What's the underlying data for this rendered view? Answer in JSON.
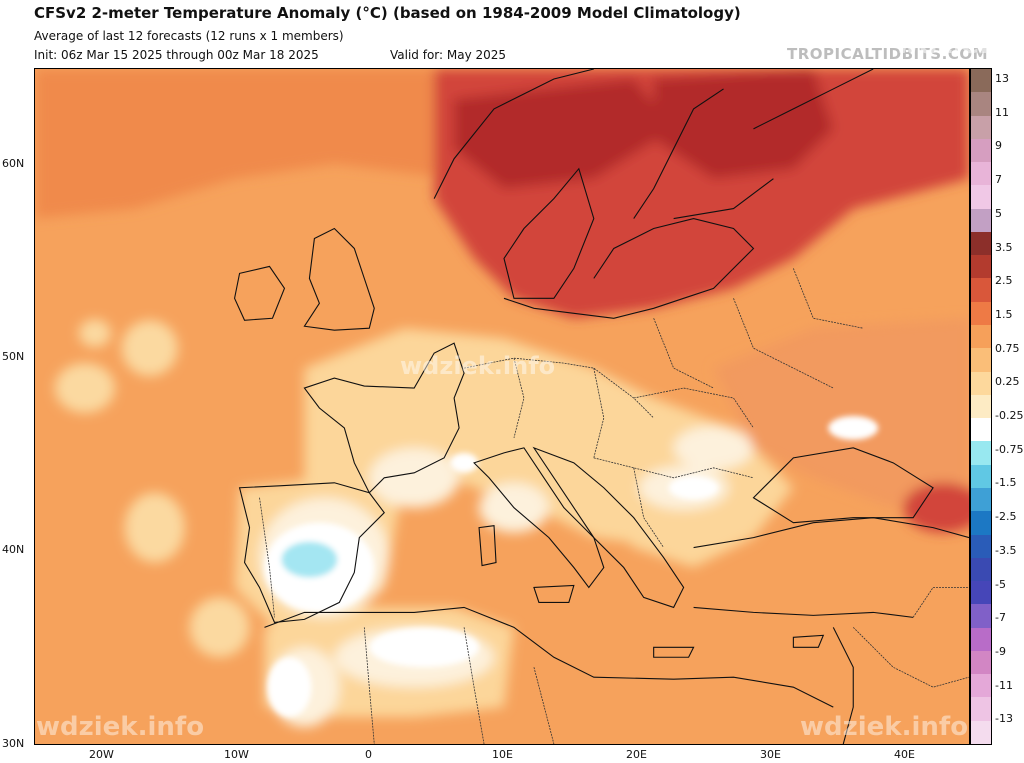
{
  "header": {
    "title": "CFSv2 2-meter Temperature Anomaly (°C) (based on 1984-2009 Model Climatology)",
    "subtitle": "Average of last 12 forecasts (12 runs x 1 members)",
    "init": "Init: 06z Mar 15 2025 through 00z Mar 18 2025",
    "valid": "Valid for: May 2025",
    "brand": "TROPICALTIDBITS.COM"
  },
  "watermarks": {
    "text": "wdziek.info"
  },
  "axes": {
    "lat_labels": [
      "60N",
      "50N",
      "40N",
      "30N"
    ],
    "lon_labels": [
      "20W",
      "10W",
      "0",
      "10E",
      "20E",
      "30E",
      "40E"
    ]
  },
  "legend": {
    "labels": [
      "13",
      "11",
      "9",
      "7",
      "5",
      "3.5",
      "2.5",
      "1.5",
      "0.75",
      "0.25",
      "-0.25",
      "-0.75",
      "-1.5",
      "-2.5",
      "-3.5",
      "-5",
      "-7",
      "-9",
      "-11",
      "-13"
    ],
    "colors": [
      "#8a6a5a",
      "#a98580",
      "#c8a0a8",
      "#d69ec0",
      "#e8b4d8",
      "#f0c8e6",
      "#c2a0c4",
      "#8c2f2a",
      "#b33b2e",
      "#d9573a",
      "#ee7a45",
      "#f6a05a",
      "#fabe78",
      "#fdd89c",
      "#fdebc4",
      "#ffffff",
      "#98e8f0",
      "#60c8e4",
      "#3ea0d6",
      "#1c78c4",
      "#2a5cb8",
      "#3a4ab2",
      "#4646b8",
      "#8060c8",
      "#b86cc8",
      "#d286c4",
      "#e4a8d8",
      "#eec4e4",
      "#f4dcee"
    ]
  },
  "colors": {
    "ocean_base": "#f6a25c",
    "atlantic_warm": "#f08a4c",
    "cool_patch": "#fbd9a0",
    "land_mild": "#fcd69a",
    "near_zero": "#fdf1dc",
    "white": "#ffffff",
    "cyan": "#a4e6f2",
    "hot": "#d2453a",
    "very_hot": "#b22a2a",
    "eastern": "#f29a5e"
  }
}
